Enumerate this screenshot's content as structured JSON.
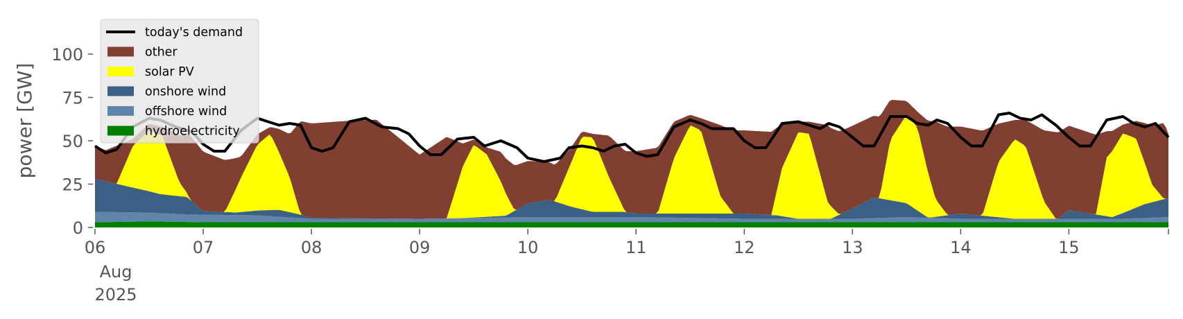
{
  "chart_data": {
    "type": "area",
    "stacked": true,
    "ylabel": "power [GW]",
    "ylim": [
      0,
      120
    ],
    "yticks": [
      0,
      25,
      50,
      75,
      100
    ],
    "x_start_date": "2025-08-06",
    "x_range_days": [
      0,
      9.92
    ],
    "x_tick_labels": [
      "06",
      "07",
      "08",
      "09",
      "10",
      "11",
      "12",
      "13",
      "14",
      "15"
    ],
    "x_first_tick_extra": [
      "Aug",
      "2025"
    ],
    "grid": false,
    "legend_position": "upper-left",
    "background": "#ffffff",
    "series": [
      {
        "name": "hydroelectricity",
        "color": "#008000",
        "points": [
          [
            0,
            3
          ],
          [
            0.5,
            3.5
          ],
          [
            1,
            3
          ],
          [
            2,
            3
          ],
          [
            3,
            3
          ],
          [
            4,
            3
          ],
          [
            5,
            3
          ],
          [
            6,
            3
          ],
          [
            7,
            3
          ],
          [
            8,
            3
          ],
          [
            9,
            3
          ],
          [
            9.92,
            3
          ]
        ]
      },
      {
        "name": "offshore wind",
        "color": "#5f86a8",
        "points": [
          [
            0,
            6
          ],
          [
            0.8,
            4.5
          ],
          [
            1.5,
            4
          ],
          [
            2,
            2
          ],
          [
            3,
            2
          ],
          [
            4,
            3
          ],
          [
            5,
            3
          ],
          [
            6,
            2
          ],
          [
            7,
            2
          ],
          [
            7.5,
            3
          ],
          [
            8,
            2
          ],
          [
            9,
            2
          ],
          [
            9.5,
            2
          ],
          [
            9.92,
            3
          ]
        ]
      },
      {
        "name": "onshore wind",
        "color": "#3a6185",
        "points": [
          [
            0,
            19
          ],
          [
            0.3,
            15
          ],
          [
            0.6,
            11
          ],
          [
            0.85,
            10
          ],
          [
            1,
            2
          ],
          [
            1.3,
            1.5
          ],
          [
            1.7,
            4
          ],
          [
            1.9,
            2
          ],
          [
            2,
            0.5
          ],
          [
            3,
            0
          ],
          [
            3.4,
            0
          ],
          [
            3.8,
            1
          ],
          [
            4,
            8
          ],
          [
            4.2,
            10
          ],
          [
            4.4,
            6
          ],
          [
            4.6,
            3
          ],
          [
            4.9,
            3
          ],
          [
            5,
            2
          ],
          [
            6,
            3
          ],
          [
            6.3,
            2
          ],
          [
            6.5,
            0
          ],
          [
            6.8,
            0
          ],
          [
            7,
            6
          ],
          [
            7.2,
            12
          ],
          [
            7.5,
            8
          ],
          [
            7.7,
            0
          ],
          [
            8,
            3
          ],
          [
            8.5,
            0
          ],
          [
            8.9,
            0
          ],
          [
            9,
            5
          ],
          [
            9.4,
            1
          ],
          [
            9.7,
            8
          ],
          [
            9.92,
            11
          ]
        ]
      },
      {
        "name": "solar PV",
        "color": "#ffff00",
        "points": [
          [
            0,
            0
          ],
          [
            0.2,
            0
          ],
          [
            0.35,
            24
          ],
          [
            0.5,
            35
          ],
          [
            0.62,
            34
          ],
          [
            0.78,
            8
          ],
          [
            0.88,
            0
          ],
          [
            1.2,
            0
          ],
          [
            1.35,
            20
          ],
          [
            1.5,
            38
          ],
          [
            1.62,
            44
          ],
          [
            1.8,
            20
          ],
          [
            1.9,
            0
          ],
          [
            3.25,
            0
          ],
          [
            3.4,
            30
          ],
          [
            3.5,
            42
          ],
          [
            3.62,
            36
          ],
          [
            3.75,
            20
          ],
          [
            3.88,
            0
          ],
          [
            4.25,
            0
          ],
          [
            4.38,
            22
          ],
          [
            4.5,
            42
          ],
          [
            4.6,
            43
          ],
          [
            4.75,
            20
          ],
          [
            4.9,
            0
          ],
          [
            5.2,
            0
          ],
          [
            5.35,
            32
          ],
          [
            5.5,
            51
          ],
          [
            5.6,
            48
          ],
          [
            5.78,
            10
          ],
          [
            5.9,
            0
          ],
          [
            6.25,
            0
          ],
          [
            6.35,
            28
          ],
          [
            6.5,
            50
          ],
          [
            6.6,
            49
          ],
          [
            6.77,
            10
          ],
          [
            6.88,
            0
          ],
          [
            7.25,
            0
          ],
          [
            7.35,
            35
          ],
          [
            7.5,
            51
          ],
          [
            7.6,
            48
          ],
          [
            7.77,
            10
          ],
          [
            7.88,
            0
          ],
          [
            8.2,
            0
          ],
          [
            8.35,
            32
          ],
          [
            8.5,
            46
          ],
          [
            8.6,
            42
          ],
          [
            8.77,
            10
          ],
          [
            8.88,
            0
          ],
          [
            9.25,
            0
          ],
          [
            9.35,
            34
          ],
          [
            9.5,
            46
          ],
          [
            9.62,
            40
          ],
          [
            9.77,
            10
          ],
          [
            9.88,
            0
          ],
          [
            9.92,
            0
          ]
        ]
      },
      {
        "name": "other",
        "color": "#803f31",
        "points": [
          [
            0,
            19
          ],
          [
            0.1,
            18
          ],
          [
            0.2,
            22
          ],
          [
            0.35,
            4
          ],
          [
            0.5,
            4
          ],
          [
            0.62,
            5
          ],
          [
            0.78,
            27
          ],
          [
            0.88,
            37
          ],
          [
            1.2,
            30
          ],
          [
            1.35,
            12
          ],
          [
            1.5,
            6
          ],
          [
            1.62,
            4
          ],
          [
            1.8,
            25
          ],
          [
            1.9,
            54
          ],
          [
            2.3,
            56
          ],
          [
            2.6,
            57
          ],
          [
            3,
            37
          ],
          [
            3.25,
            47
          ],
          [
            3.4,
            13
          ],
          [
            3.5,
            3
          ],
          [
            3.62,
            4
          ],
          [
            3.75,
            17
          ],
          [
            3.88,
            26
          ],
          [
            4.25,
            21
          ],
          [
            4.38,
            10
          ],
          [
            4.5,
            3
          ],
          [
            4.6,
            2
          ],
          [
            4.75,
            24
          ],
          [
            4.9,
            35
          ],
          [
            5.2,
            38
          ],
          [
            5.35,
            21
          ],
          [
            5.5,
            6
          ],
          [
            5.6,
            7
          ],
          [
            5.78,
            41
          ],
          [
            5.9,
            48
          ],
          [
            6.25,
            48
          ],
          [
            6.35,
            25
          ],
          [
            6.5,
            6
          ],
          [
            6.6,
            7
          ],
          [
            6.77,
            44
          ],
          [
            6.88,
            48
          ],
          [
            7.25,
            47
          ],
          [
            7.35,
            23
          ],
          [
            7.5,
            8
          ],
          [
            7.6,
            9
          ],
          [
            7.77,
            45
          ],
          [
            7.88,
            51
          ],
          [
            8.2,
            49
          ],
          [
            8.35,
            22
          ],
          [
            8.5,
            11
          ],
          [
            8.6,
            15
          ],
          [
            8.77,
            41
          ],
          [
            8.88,
            50
          ],
          [
            9.25,
            46
          ],
          [
            9.35,
            15
          ],
          [
            9.5,
            5
          ],
          [
            9.62,
            10
          ],
          [
            9.77,
            34
          ],
          [
            9.88,
            44
          ],
          [
            9.92,
            37
          ]
        ]
      }
    ],
    "demand": {
      "name": "today's demand",
      "color": "#000000",
      "points": [
        [
          0,
          47
        ],
        [
          0.1,
          43
        ],
        [
          0.2,
          45
        ],
        [
          0.35,
          58
        ],
        [
          0.5,
          63
        ],
        [
          0.6,
          62
        ],
        [
          0.75,
          58
        ],
        [
          0.9,
          55
        ],
        [
          1,
          48
        ],
        [
          1.1,
          44
        ],
        [
          1.2,
          44
        ],
        [
          1.35,
          56
        ],
        [
          1.5,
          63
        ],
        [
          1.6,
          61
        ],
        [
          1.7,
          59
        ],
        [
          1.8,
          60
        ],
        [
          1.9,
          59
        ],
        [
          2,
          46
        ],
        [
          2.1,
          44
        ],
        [
          2.2,
          46
        ],
        [
          2.35,
          61
        ],
        [
          2.5,
          63
        ],
        [
          2.65,
          58
        ],
        [
          2.8,
          57
        ],
        [
          2.9,
          54
        ],
        [
          3,
          47
        ],
        [
          3.1,
          42
        ],
        [
          3.2,
          42
        ],
        [
          3.35,
          51
        ],
        [
          3.5,
          52
        ],
        [
          3.6,
          47
        ],
        [
          3.75,
          50
        ],
        [
          3.9,
          46
        ],
        [
          4,
          40
        ],
        [
          4.15,
          38
        ],
        [
          4.3,
          40
        ],
        [
          4.38,
          46
        ],
        [
          4.5,
          47
        ],
        [
          4.6,
          46
        ],
        [
          4.7,
          44
        ],
        [
          4.8,
          47
        ],
        [
          4.9,
          48
        ],
        [
          5,
          43
        ],
        [
          5.1,
          41
        ],
        [
          5.2,
          42
        ],
        [
          5.35,
          58
        ],
        [
          5.5,
          62
        ],
        [
          5.6,
          60
        ],
        [
          5.7,
          57
        ],
        [
          5.8,
          57
        ],
        [
          5.9,
          57
        ],
        [
          6,
          50
        ],
        [
          6.1,
          46
        ],
        [
          6.2,
          46
        ],
        [
          6.35,
          60
        ],
        [
          6.5,
          61
        ],
        [
          6.6,
          59
        ],
        [
          6.7,
          57
        ],
        [
          6.78,
          60
        ],
        [
          6.88,
          58
        ],
        [
          7,
          52
        ],
        [
          7.1,
          47
        ],
        [
          7.2,
          47
        ],
        [
          7.35,
          64
        ],
        [
          7.5,
          64
        ],
        [
          7.6,
          60
        ],
        [
          7.7,
          59
        ],
        [
          7.78,
          62
        ],
        [
          7.88,
          60
        ],
        [
          8,
          52
        ],
        [
          8.1,
          47
        ],
        [
          8.2,
          47
        ],
        [
          8.35,
          65
        ],
        [
          8.45,
          66
        ],
        [
          8.55,
          63
        ],
        [
          8.65,
          62
        ],
        [
          8.75,
          65
        ],
        [
          8.88,
          59
        ],
        [
          9,
          52
        ],
        [
          9.1,
          47
        ],
        [
          9.2,
          47
        ],
        [
          9.35,
          62
        ],
        [
          9.5,
          64
        ],
        [
          9.6,
          60
        ],
        [
          9.7,
          58
        ],
        [
          9.8,
          60
        ],
        [
          9.92,
          52
        ]
      ]
    },
    "legend_entries": [
      "today's demand",
      "other",
      "solar PV",
      "onshore wind",
      "offshore wind",
      "hydroelectricity"
    ],
    "legend_colors": [
      "#000000",
      "#803f31",
      "#ffff00",
      "#3a6185",
      "#5f86a8",
      "#008000"
    ]
  }
}
